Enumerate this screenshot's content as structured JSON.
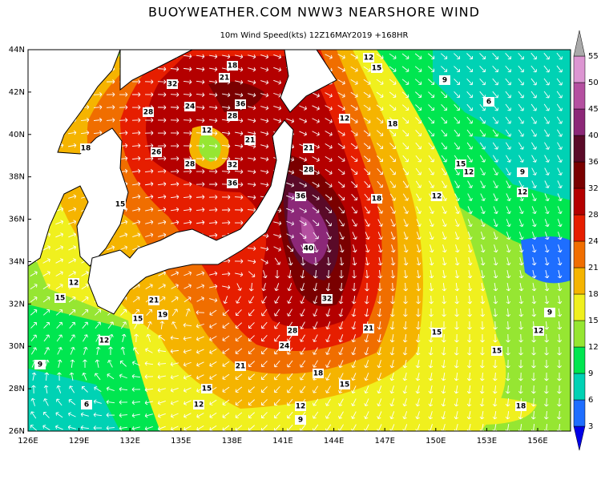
{
  "header": {
    "title": "BUOYWEATHER.COM NWW3 NEARSHORE WIND",
    "subtitle": "10m Wind Speed(kts)  12Z16MAY2019  +168HR"
  },
  "map": {
    "lat_ticks": [
      "44N",
      "42N",
      "40N",
      "38N",
      "36N",
      "34N",
      "32N",
      "30N",
      "28N",
      "26N"
    ],
    "lon_ticks": [
      "126E",
      "129E",
      "132E",
      "135E",
      "138E",
      "141E",
      "144E",
      "147E",
      "150E",
      "153E",
      "156E"
    ],
    "contour_labels": [
      "18",
      "21",
      "32",
      "28",
      "24",
      "36",
      "28",
      "12",
      "21",
      "26",
      "28",
      "32",
      "36",
      "21",
      "28",
      "36",
      "40",
      "32",
      "28",
      "24",
      "21",
      "18",
      "15",
      "18",
      "15",
      "21",
      "12",
      "15",
      "12",
      "9",
      "6",
      "12",
      "18",
      "12",
      "9",
      "12",
      "15",
      "9",
      "12",
      "15",
      "18",
      "12",
      "9",
      "15",
      "12",
      "18",
      "15",
      "12",
      "15",
      "19",
      "21",
      "15",
      "12",
      "9",
      "6"
    ]
  },
  "colorbar": {
    "levels": [
      3,
      6,
      9,
      12,
      15,
      18,
      21,
      24,
      28,
      32,
      36,
      40,
      45,
      50,
      55
    ],
    "colors": [
      "#0000e6",
      "#1e6eff",
      "#00d2b4",
      "#00e650",
      "#96e632",
      "#f0f01e",
      "#f5b400",
      "#f06e00",
      "#e61e00",
      "#b40000",
      "#7a0000",
      "#5a0a28",
      "#8c2878",
      "#b450a0",
      "#dc96d2",
      "#aaaaaa"
    ]
  }
}
